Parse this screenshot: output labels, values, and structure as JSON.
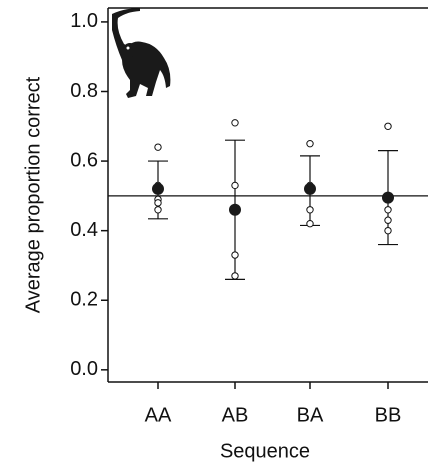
{
  "chart_data": {
    "type": "errorpoint",
    "categories": [
      "AA",
      "AB",
      "BA",
      "BB"
    ],
    "mean": [
      0.52,
      0.46,
      0.52,
      0.495
    ],
    "upper": [
      0.6,
      0.66,
      0.615,
      0.63
    ],
    "lower": [
      0.434,
      0.26,
      0.415,
      0.36
    ],
    "points": [
      [
        0.64,
        0.53,
        0.49,
        0.48,
        0.46
      ],
      [
        0.71,
        0.53,
        0.33,
        0.27
      ],
      [
        0.65,
        0.53,
        0.46,
        0.42
      ],
      [
        0.7,
        0.5,
        0.46,
        0.43,
        0.4
      ]
    ],
    "hline": 0.5,
    "xlabel": "Sequence",
    "ylabel": "Average proportion correct",
    "ylim": [
      -0.035,
      1.04
    ],
    "yticks": [
      {
        "value": 0,
        "label": "0.0"
      },
      0.2,
      0.4,
      0.6,
      0.8,
      {
        "value": 1,
        "label": "1.0"
      }
    ],
    "color": "#1a1a1a"
  }
}
